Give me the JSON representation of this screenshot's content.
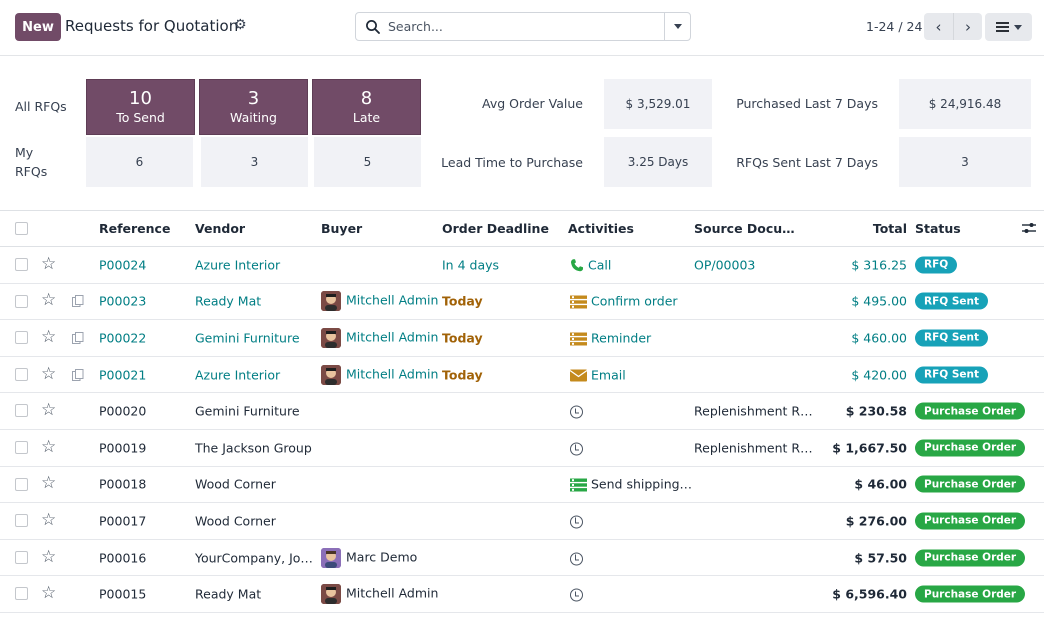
{
  "control_panel": {
    "new_label": "New",
    "title": "Requests for Quotation",
    "search_placeholder": "Search...",
    "pager": "1-24 / 24"
  },
  "dashboard": {
    "all_rfqs_label": "All RFQs",
    "my_rfqs_label_1": "My",
    "my_rfqs_label_2": "RFQs",
    "tiles": [
      {
        "value": "10",
        "label": "To Send"
      },
      {
        "value": "3",
        "label": "Waiting"
      },
      {
        "value": "8",
        "label": "Late"
      }
    ],
    "my_values": [
      "6",
      "3",
      "5"
    ],
    "stats": [
      {
        "label": "Avg Order Value",
        "value": "$ 3,529.01"
      },
      {
        "label": "Purchased Last 7 Days",
        "value": "$ 24,916.48"
      },
      {
        "label": "Lead Time to Purchase",
        "value": "3.25 Days"
      },
      {
        "label": "RFQs Sent Last 7 Days",
        "value": "3"
      }
    ]
  },
  "table": {
    "columns": [
      "Reference",
      "Vendor",
      "Buyer",
      "Order Deadline",
      "Activities",
      "Source Docu…",
      "Total",
      "Status"
    ],
    "rows": [
      {
        "reference": "P00024",
        "vendor": "Azure Interior",
        "buyer": "",
        "deadline": "In 4 days",
        "activity": "Call",
        "activity_icon": "phone-icon",
        "source": "OP/00003",
        "total": "$ 316.25",
        "status": "RFQ",
        "highlight": true,
        "copy": false
      },
      {
        "reference": "P00023",
        "vendor": "Ready Mat",
        "buyer": "Mitchell Admin",
        "deadline": "Today",
        "activity": "Confirm order",
        "activity_icon": "todo-list-icon",
        "source": "",
        "total": "$ 495.00",
        "status": "RFQ Sent",
        "highlight": true,
        "copy": true
      },
      {
        "reference": "P00022",
        "vendor": "Gemini Furniture",
        "buyer": "Mitchell Admin",
        "deadline": "Today",
        "activity": "Reminder",
        "activity_icon": "todo-list-icon",
        "source": "",
        "total": "$ 460.00",
        "status": "RFQ Sent",
        "highlight": true,
        "copy": true
      },
      {
        "reference": "P00021",
        "vendor": "Azure Interior",
        "buyer": "Mitchell Admin",
        "deadline": "Today",
        "activity": "Email",
        "activity_icon": "envelope-icon",
        "source": "",
        "total": "$ 420.00",
        "status": "RFQ Sent",
        "highlight": true,
        "copy": true
      },
      {
        "reference": "P00020",
        "vendor": "Gemini Furniture",
        "buyer": "",
        "deadline": "",
        "activity": "",
        "activity_icon": "clock-icon",
        "source": "Replenishment R…",
        "total": "$ 230.58",
        "status": "Purchase Order",
        "highlight": false,
        "copy": false
      },
      {
        "reference": "P00019",
        "vendor": "The Jackson Group",
        "buyer": "",
        "deadline": "",
        "activity": "",
        "activity_icon": "clock-icon",
        "source": "Replenishment R…",
        "total": "$ 1,667.50",
        "status": "Purchase Order",
        "highlight": false,
        "copy": false
      },
      {
        "reference": "P00018",
        "vendor": "Wood Corner",
        "buyer": "",
        "deadline": "",
        "activity": "Send shipping…",
        "activity_icon": "list-green-icon",
        "source": "",
        "total": "$ 46.00",
        "status": "Purchase Order",
        "highlight": false,
        "copy": false
      },
      {
        "reference": "P00017",
        "vendor": "Wood Corner",
        "buyer": "",
        "deadline": "",
        "activity": "",
        "activity_icon": "clock-icon",
        "source": "",
        "total": "$ 276.00",
        "status": "Purchase Order",
        "highlight": false,
        "copy": false
      },
      {
        "reference": "P00016",
        "vendor": "YourCompany, Jo…",
        "buyer": "Marc Demo",
        "deadline": "",
        "activity": "",
        "activity_icon": "clock-icon",
        "source": "",
        "total": "$ 57.50",
        "status": "Purchase Order",
        "highlight": false,
        "copy": false
      },
      {
        "reference": "P00015",
        "vendor": "Ready Mat",
        "buyer": "Mitchell Admin",
        "deadline": "",
        "activity": "",
        "activity_icon": "clock-icon",
        "source": "",
        "total": "$ 6,596.40",
        "status": "Purchase Order",
        "highlight": false,
        "copy": false
      }
    ]
  },
  "colors": {
    "brand": "#714b67",
    "link": "#017e84",
    "rfq": "#17a2b8",
    "purchase_order": "#28a745",
    "today": "#a16207"
  }
}
